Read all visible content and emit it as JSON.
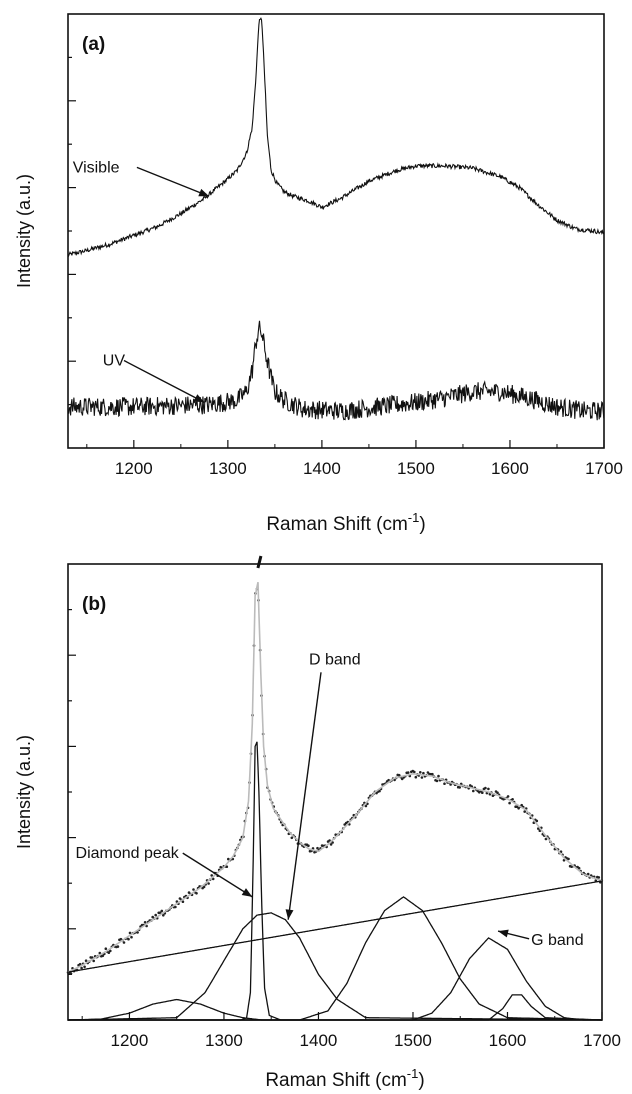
{
  "chart_data": [
    {
      "panel": "(a)",
      "type": "line",
      "title": "",
      "xlabel": "Raman Shift (cm",
      "xlabel_sup": "-1",
      "xlabel_close": ")",
      "ylabel": "Intensity (a.u.)",
      "xlim": [
        1130,
        1700
      ],
      "ylim": [
        0,
        10
      ],
      "xticks": [
        1200,
        1300,
        1400,
        1500,
        1600,
        1700
      ],
      "grid": false,
      "annotations": [
        {
          "text": "Visible",
          "series": "Visible",
          "text_x": 1135,
          "text_y": 6.35,
          "arrow_to": [
            1280,
            5.8
          ]
        },
        {
          "text": "UV",
          "series": "UV",
          "text_x": 1167,
          "text_y": 1.9,
          "arrow_to": [
            1275,
            1.05
          ]
        }
      ],
      "series": [
        {
          "name": "Visible",
          "noise": 0.05,
          "x": [
            1130,
            1150,
            1175,
            1200,
            1225,
            1250,
            1275,
            1300,
            1310,
            1320,
            1326,
            1330,
            1333,
            1336,
            1339,
            1342,
            1346,
            1352,
            1360,
            1370,
            1385,
            1400,
            1420,
            1450,
            1480,
            1500,
            1530,
            1560,
            1590,
            1610,
            1630,
            1650,
            1670,
            1690,
            1700
          ],
          "y": [
            4.45,
            4.55,
            4.7,
            4.9,
            5.1,
            5.4,
            5.75,
            6.2,
            6.4,
            6.8,
            7.4,
            8.6,
            9.8,
            9.9,
            8.6,
            7.2,
            6.4,
            6.1,
            5.9,
            5.8,
            5.7,
            5.55,
            5.75,
            6.15,
            6.4,
            6.5,
            6.5,
            6.45,
            6.25,
            6.0,
            5.6,
            5.25,
            5.05,
            5.0,
            4.95
          ]
        },
        {
          "name": "UV",
          "noise": 0.22,
          "x": [
            1130,
            1200,
            1280,
            1310,
            1320,
            1326,
            1330,
            1333,
            1336,
            1340,
            1345,
            1350,
            1360,
            1380,
            1420,
            1460,
            1500,
            1530,
            1560,
            1590,
            1620,
            1650,
            1680,
            1700
          ],
          "y": [
            0.95,
            0.95,
            1.0,
            1.1,
            1.3,
            1.8,
            2.45,
            2.75,
            2.65,
            2.2,
            1.7,
            1.3,
            1.1,
            0.9,
            0.85,
            0.95,
            1.05,
            1.15,
            1.3,
            1.3,
            1.15,
            0.95,
            0.85,
            0.85
          ]
        }
      ]
    },
    {
      "panel": "(b)",
      "type": "line",
      "title": "",
      "xlabel": "Raman Shift (cm",
      "xlabel_sup": "-1",
      "xlabel_close": ")",
      "ylabel": "Intensity (a.u.)",
      "xlim": [
        1135,
        1700
      ],
      "ylim": [
        0,
        10
      ],
      "xticks": [
        1200,
        1300,
        1400,
        1500,
        1600,
        1700
      ],
      "grid": false,
      "annotations": [
        {
          "text": "Diamond peak",
          "target": "diamond_peak",
          "text_x": 1143,
          "text_y": 3.55,
          "arrow_to": [
            1330,
            2.7
          ]
        },
        {
          "text": "D band",
          "target": "D",
          "text_x": 1390,
          "text_y": 7.8,
          "arrow_to": [
            1368,
            2.2
          ]
        },
        {
          "text": "G band",
          "target": "G",
          "text_x": 1625,
          "text_y": 1.65,
          "arrow_to": [
            1590,
            1.95
          ]
        }
      ],
      "series": [
        {
          "name": "measured",
          "style": "dots",
          "noise": 0.07,
          "x": [
            1135,
            1150,
            1175,
            1200,
            1225,
            1250,
            1275,
            1300,
            1310,
            1320,
            1326,
            1330,
            1333,
            1336,
            1339,
            1342,
            1346,
            1352,
            1360,
            1370,
            1380,
            1390,
            1400,
            1410,
            1420,
            1440,
            1460,
            1480,
            1500,
            1520,
            1540,
            1560,
            1580,
            1600,
            1620,
            1640,
            1660,
            1680,
            1700
          ],
          "y": [
            1.05,
            1.2,
            1.5,
            1.85,
            2.2,
            2.55,
            2.9,
            3.35,
            3.6,
            4.0,
            4.8,
            6.5,
            9.3,
            9.6,
            7.6,
            6.0,
            5.15,
            4.65,
            4.4,
            4.1,
            3.9,
            3.75,
            3.7,
            3.85,
            4.05,
            4.5,
            5.0,
            5.3,
            5.4,
            5.35,
            5.2,
            5.1,
            5.0,
            4.85,
            4.6,
            4.05,
            3.55,
            3.2,
            3.05
          ]
        },
        {
          "name": "fit",
          "style": "line",
          "x": [
            1135,
            1150,
            1175,
            1200,
            1225,
            1250,
            1275,
            1300,
            1310,
            1320,
            1326,
            1330,
            1333,
            1336,
            1339,
            1342,
            1346,
            1352,
            1360,
            1370,
            1380,
            1390,
            1400,
            1410,
            1420,
            1440,
            1460,
            1480,
            1500,
            1520,
            1540,
            1560,
            1580,
            1600,
            1620,
            1640,
            1660,
            1680,
            1700
          ],
          "y": [
            1.05,
            1.2,
            1.5,
            1.85,
            2.2,
            2.55,
            2.9,
            3.35,
            3.6,
            4.0,
            4.8,
            6.5,
            9.3,
            9.6,
            7.6,
            6.0,
            5.15,
            4.65,
            4.4,
            4.1,
            3.9,
            3.75,
            3.7,
            3.85,
            4.05,
            4.5,
            5.0,
            5.3,
            5.4,
            5.35,
            5.2,
            5.1,
            5.0,
            4.85,
            4.6,
            4.05,
            3.55,
            3.2,
            3.05
          ]
        },
        {
          "name": "baseline",
          "style": "line",
          "x": [
            1135,
            1700
          ],
          "y": [
            1.05,
            3.05
          ]
        },
        {
          "name": "diamond_peak",
          "style": "line",
          "x": [
            1135,
            1318,
            1324,
            1328,
            1331,
            1333,
            1335,
            1337,
            1340,
            1343,
            1348,
            1360,
            1700
          ],
          "y": [
            0,
            0,
            0.05,
            0.6,
            3.5,
            6.0,
            6.1,
            5.0,
            2.5,
            0.7,
            0.1,
            0,
            0
          ]
        },
        {
          "name": "D",
          "style": "line",
          "x": [
            1135,
            1250,
            1280,
            1300,
            1320,
            1335,
            1350,
            1365,
            1380,
            1400,
            1420,
            1450,
            1700
          ],
          "y": [
            0,
            0.05,
            0.6,
            1.3,
            2.0,
            2.3,
            2.35,
            2.2,
            1.8,
            1.0,
            0.45,
            0.05,
            0
          ]
        },
        {
          "name": "amorphous_low",
          "style": "line",
          "x": [
            1135,
            1170,
            1200,
            1225,
            1250,
            1275,
            1300,
            1320,
            1340,
            1700
          ],
          "y": [
            0,
            0.02,
            0.15,
            0.35,
            0.45,
            0.35,
            0.15,
            0.05,
            0,
            0
          ]
        },
        {
          "name": "broad_1490",
          "style": "line",
          "x": [
            1135,
            1380,
            1410,
            1430,
            1450,
            1470,
            1490,
            1510,
            1530,
            1550,
            1570,
            1600,
            1700
          ],
          "y": [
            0,
            0,
            0.2,
            0.8,
            1.7,
            2.4,
            2.7,
            2.4,
            1.7,
            0.9,
            0.35,
            0.05,
            0
          ]
        },
        {
          "name": "G",
          "style": "line",
          "x": [
            1135,
            1500,
            1520,
            1540,
            1560,
            1580,
            1600,
            1620,
            1640,
            1660,
            1680,
            1700
          ],
          "y": [
            0,
            0,
            0.15,
            0.6,
            1.35,
            1.8,
            1.55,
            0.85,
            0.3,
            0.05,
            0,
            0
          ]
        },
        {
          "name": "small_1610",
          "style": "line",
          "x": [
            1135,
            1580,
            1595,
            1605,
            1615,
            1625,
            1640,
            1700
          ],
          "y": [
            0,
            0,
            0.25,
            0.55,
            0.55,
            0.3,
            0.05,
            0
          ]
        }
      ],
      "marker": {
        "x": 1337,
        "y": 10.0
      }
    }
  ]
}
